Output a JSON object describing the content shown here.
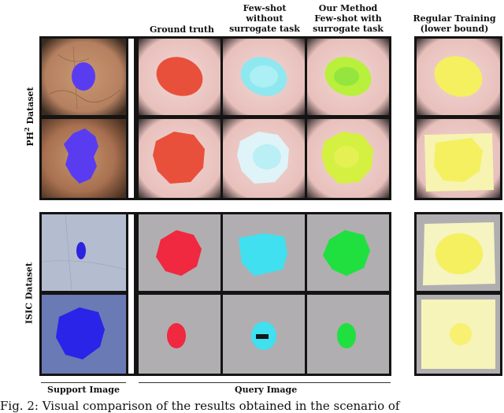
{
  "headers": {
    "ground_truth": "Ground truth",
    "few_shot_line1": "Few-shot",
    "few_shot_line2": "without",
    "few_shot_line3": "surrogate task",
    "ours_line1": "Our Method",
    "ours_line2": "Few-shot with",
    "ours_line3": "surrogate task",
    "regular_line1": "Regular Training",
    "regular_line2": "(lower bound)"
  },
  "rows": {
    "ph2_label_prefix": "PH",
    "ph2_label_sup": "2",
    "ph2_label_suffix": " Dataset",
    "isic_label": "ISIC Dataset"
  },
  "footer": {
    "support": "Support Image",
    "query": "Query Image"
  },
  "caption": "Fig. 2: Visual comparison of the results obtained in the scenario of",
  "colors": {
    "support_mask": "#5a3cf0",
    "ground_truth": "#e8503c",
    "few_shot": "#8fe8f0",
    "ours": "#b8f03c",
    "regular": "#f4f060",
    "isic_few_shot": "#40e0f0",
    "isic_ours": "#20e040",
    "isic_gt": "#f02840",
    "frame": "#141414"
  }
}
